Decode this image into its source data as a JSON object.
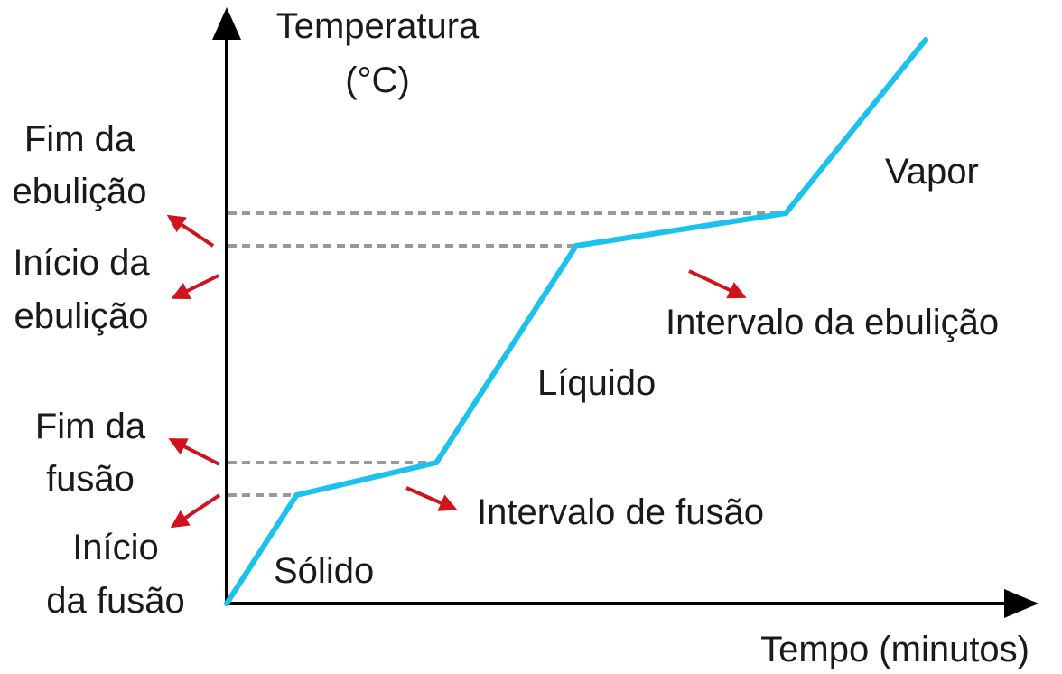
{
  "chart_data": {
    "type": "line",
    "xlabel": "Tempo (minutos)",
    "ylabel_line1": "Temperatura",
    "ylabel_line2": "(°C)",
    "series": [
      {
        "color": "#1cc2ee",
        "points": [
          {
            "x": 0,
            "y": 0
          },
          {
            "x": 1,
            "y": 1
          },
          {
            "x": 3,
            "y": 1.3
          },
          {
            "x": 5,
            "y": 3.3
          },
          {
            "x": 8,
            "y": 3.6
          },
          {
            "x": 10,
            "y": 5.2
          }
        ]
      }
    ],
    "phase_labels": [
      {
        "text": "Sólido"
      },
      {
        "text": "Líquido"
      },
      {
        "text": "Vapor"
      }
    ],
    "interval_labels": [
      {
        "text": "Intervalo de fusão"
      },
      {
        "text": "Intervalo da ebulição"
      }
    ],
    "level_labels": [
      {
        "line1": "Fim da",
        "line2": "ebulição"
      },
      {
        "line1": "Início da",
        "line2": "ebulição"
      },
      {
        "line1": "Fim da",
        "line2": "fusão"
      },
      {
        "line1": "Início",
        "line2": "da fusão"
      }
    ],
    "colors": {
      "axis": "#000000",
      "curve": "#1cc2ee",
      "guide": "#999999",
      "arrow": "#d0141e"
    }
  }
}
